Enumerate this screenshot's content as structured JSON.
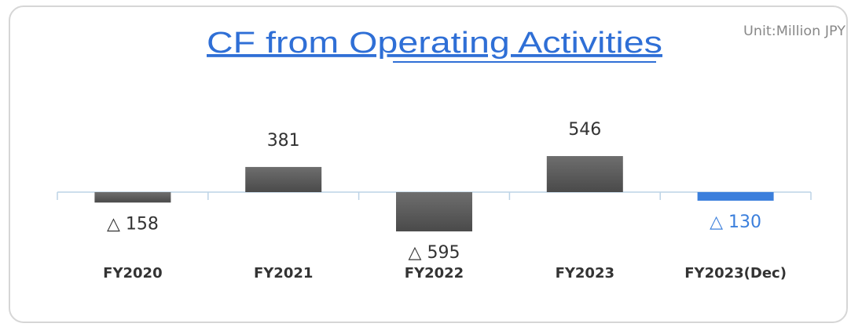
{
  "chart_data": {
    "type": "bar",
    "title": "CF from Operating Activities",
    "unit_note": "Unit:Million JPY",
    "categories": [
      "FY2020",
      "FY2021",
      "FY2022",
      "FY2023",
      "FY2023(Dec)"
    ],
    "values": [
      -158,
      381,
      -595,
      546,
      -130
    ],
    "value_labels": [
      "△ 158",
      "381",
      "△ 595",
      "546",
      "△ 130"
    ],
    "colors": [
      "#5a5a5a",
      "#5a5a5a",
      "#5a5a5a",
      "#5a5a5a",
      "#3b7fdc"
    ],
    "label_colors": [
      "#333333",
      "#333333",
      "#333333",
      "#333333",
      "#3b7fdc"
    ]
  }
}
